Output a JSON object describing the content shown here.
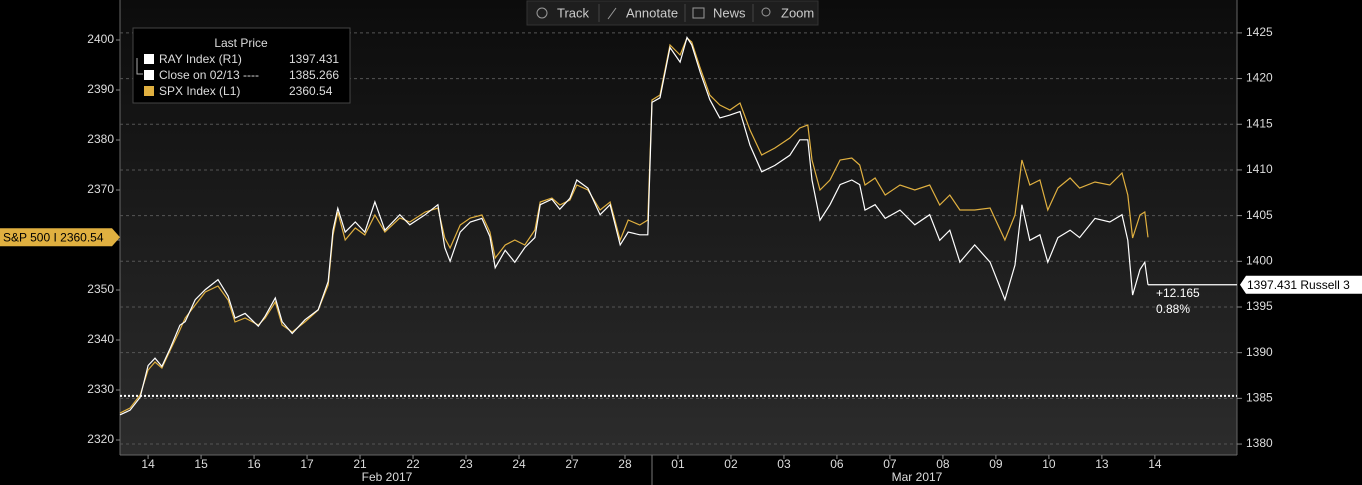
{
  "toolbar": [
    "Track",
    "Annotate",
    "News",
    "Zoom"
  ],
  "chart_data": {
    "type": "line",
    "legend_title": "Last Price",
    "months": [
      "Feb 2017",
      "Mar 2017"
    ],
    "x": [
      -0.53,
      -0.34,
      -0.15,
      0,
      0.13,
      0.26,
      0.42,
      0.6,
      0.7,
      0.89,
      1.08,
      1.32,
      1.51,
      1.64,
      1.83,
      2.08,
      2.21,
      2.4,
      2.53,
      2.72,
      2.96,
      3.21,
      3.4,
      3.49,
      3.58,
      3.72,
      3.91,
      4.09,
      4.28,
      4.47,
      4.75,
      4.94,
      5.23,
      5.47,
      5.6,
      5.7,
      5.89,
      6.08,
      6.3,
      6.45,
      6.55,
      6.74,
      6.92,
      7.11,
      7.3,
      7.4,
      7.62,
      7.77,
      7.96,
      8.09,
      8.3,
      8.53,
      8.72,
      8.91,
      9.06,
      9.28,
      9.43,
      9.51,
      9.66,
      9.85,
      10.04,
      10.17,
      10.26,
      10.42,
      10.6,
      10.79,
      10.98,
      11.17,
      11.36,
      11.58,
      11.83,
      12.11,
      12.3,
      12.45,
      12.53,
      12.68,
      12.87,
      13.06,
      13.28,
      13.43,
      13.53,
      13.72,
      13.91,
      14.19,
      14.47,
      14.75,
      14.94,
      15.13,
      15.32,
      15.6,
      15.89,
      16.17,
      16.36,
      16.49,
      16.64,
      16.83,
      16.98,
      17.17,
      17.4,
      17.58,
      17.87,
      18.15,
      18.38,
      18.49,
      18.58,
      18.72,
      18.81,
      18.87
    ],
    "xlim": [
      -0.53,
      20.55
    ],
    "xticks": [
      {
        "value": 0,
        "label": "14"
      },
      {
        "value": 1,
        "label": "15"
      },
      {
        "value": 2,
        "label": "16"
      },
      {
        "value": 3,
        "label": "17"
      },
      {
        "value": 4,
        "label": "21"
      },
      {
        "value": 5,
        "label": "22"
      },
      {
        "value": 6,
        "label": "23"
      },
      {
        "value": 7,
        "label": "24"
      },
      {
        "value": 8,
        "label": "27"
      },
      {
        "value": 9,
        "label": "28"
      },
      {
        "value": 10,
        "label": "01"
      },
      {
        "value": 11,
        "label": "02"
      },
      {
        "value": 12,
        "label": "03"
      },
      {
        "value": 13,
        "label": "06"
      },
      {
        "value": 14,
        "label": "07"
      },
      {
        "value": 15,
        "label": "08"
      },
      {
        "value": 16,
        "label": "09"
      },
      {
        "value": 17,
        "label": "10"
      },
      {
        "value": 18,
        "label": "13"
      },
      {
        "value": 19,
        "label": "14"
      }
    ],
    "ylim": [
      2317,
      2408
    ],
    "yticks": [
      2320,
      2330,
      2340,
      2350,
      2360,
      2370,
      2380,
      2390,
      2400
    ],
    "y2lim": [
      1378.8,
      1428.6
    ],
    "y2ticks": [
      1380,
      1385,
      1390,
      1395,
      1400,
      1405,
      1410,
      1415,
      1420,
      1425
    ],
    "grid": true,
    "series": [
      {
        "name": "SPX Index  (L1)",
        "color": "#e0b040",
        "axis": "y",
        "tag": "S&P 500 I 2360.54",
        "values": [
          2325.4,
          2326.4,
          2329,
          2334,
          2335.6,
          2334.4,
          2338,
          2342,
          2344.4,
          2347,
          2349.6,
          2350.8,
          2348,
          2343.6,
          2344.4,
          2343,
          2344.4,
          2347.6,
          2343,
          2341.6,
          2343.6,
          2346,
          2351,
          2361,
          2365.6,
          2360,
          2362.4,
          2361,
          2365,
          2361.6,
          2364.4,
          2363.6,
          2365.6,
          2366.4,
          2360.4,
          2358.4,
          2363,
          2364.4,
          2365,
          2361.6,
          2356.4,
          2359,
          2360,
          2359,
          2362,
          2367.6,
          2368.4,
          2367,
          2368,
          2371,
          2370,
          2366,
          2367.6,
          2360,
          2364,
          2363,
          2364,
          2388,
          2389,
          2399,
          2397,
          2400.4,
          2399.6,
          2394.4,
          2389,
          2387,
          2386,
          2387.4,
          2382,
          2377,
          2378.4,
          2380.4,
          2382.4,
          2383,
          2376,
          2370,
          2372,
          2376,
          2376.4,
          2375,
          2371,
          2372.4,
          2369,
          2371,
          2370,
          2371,
          2367,
          2369,
          2366,
          2366,
          2366.4,
          2360,
          2365,
          2376,
          2371,
          2372,
          2366,
          2370.4,
          2372.4,
          2370.4,
          2371.6,
          2371,
          2373.4,
          2369,
          2360.4,
          2365,
          2365.6,
          2360.54
        ]
      },
      {
        "name": "RAY Index  (R1)",
        "color": "#ffffff",
        "axis": "y2",
        "tag": "1397.431 Russell 3",
        "values": [
          1383.2,
          1383.7,
          1385.1,
          1388.6,
          1389.4,
          1388.5,
          1390.5,
          1393.0,
          1393.4,
          1395.8,
          1396.9,
          1398.0,
          1396.2,
          1393.8,
          1394.3,
          1392.9,
          1394.0,
          1396.0,
          1393.4,
          1392.1,
          1393.6,
          1394.7,
          1397.8,
          1403.4,
          1405.8,
          1403.2,
          1404.3,
          1403.2,
          1406.5,
          1403.4,
          1405.1,
          1404.0,
          1405.1,
          1406.2,
          1401.5,
          1400.0,
          1403.2,
          1404.3,
          1404.7,
          1402.7,
          1399.3,
          1401.2,
          1399.9,
          1401.5,
          1402.6,
          1406.2,
          1406.8,
          1405.7,
          1406.9,
          1408.9,
          1408.0,
          1405.1,
          1406.2,
          1401.8,
          1403.2,
          1402.9,
          1402.9,
          1417.4,
          1417.9,
          1423.4,
          1421.8,
          1424.5,
          1423.7,
          1420.7,
          1417.7,
          1415.7,
          1416.0,
          1416.4,
          1412.7,
          1409.8,
          1410.5,
          1411.6,
          1413.3,
          1413.3,
          1408.9,
          1404.5,
          1406.2,
          1408.4,
          1408.9,
          1408.4,
          1405.6,
          1406.2,
          1404.7,
          1405.6,
          1404.0,
          1405.1,
          1402.3,
          1403.4,
          1399.9,
          1401.8,
          1399.9,
          1395.8,
          1399.6,
          1406.2,
          1402.3,
          1402.9,
          1399.9,
          1402.6,
          1403.4,
          1402.6,
          1404.7,
          1404.3,
          1405.1,
          1402.3,
          1396.3,
          1399.1,
          1399.9,
          1397.431
        ]
      }
    ],
    "reference_line": {
      "name": "Close on 02/13 ----",
      "value": 1385.266,
      "axis": "y2",
      "color": "#ffffff"
    },
    "annotations": [
      "+12.165",
      "0.88%"
    ]
  }
}
